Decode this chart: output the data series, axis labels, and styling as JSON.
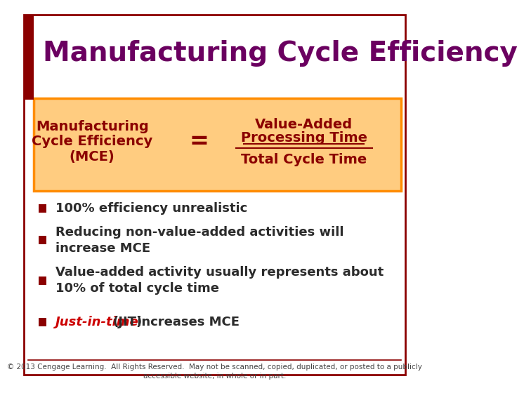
{
  "title": "Manufacturing Cycle Efficiency",
  "title_color": "#6B0060",
  "title_fontsize": 28,
  "bg_color": "#FFFFFF",
  "border_color": "#8B0000",
  "left_bar_color": "#8B0000",
  "box_bg_color": "#FFCC80",
  "box_border_color": "#FF8C00",
  "box_left_text_line1": "Manufacturing",
  "box_left_text_line2": "Cycle Efficiency",
  "box_left_text_line3": "(MCE)",
  "box_eq_text": "=",
  "box_right_num_line1": "Value-Added",
  "box_right_num_line2": "Processing Time",
  "box_right_denom": "Total Cycle Time",
  "box_text_color": "#8B0000",
  "bullet_color": "#8B0000",
  "bullet_text_color": "#2B2B2B",
  "bullet_items": [
    "100% efficiency unrealistic",
    "Reducing non-value-added activities will\nincrease MCE",
    "Value-added activity usually represents about\n10% of total cycle time",
    "Just-in-time (JIT) increases MCE"
  ],
  "bullet_jit_color": "#CC0000",
  "footer_text": "© 2013 Cengage Learning.  All Rights Reserved.  May not be scanned, copied, duplicated, or posted to a publicly\naccessible website, in whole or in part.",
  "footer_color": "#444444",
  "footer_fontsize": 7.5
}
